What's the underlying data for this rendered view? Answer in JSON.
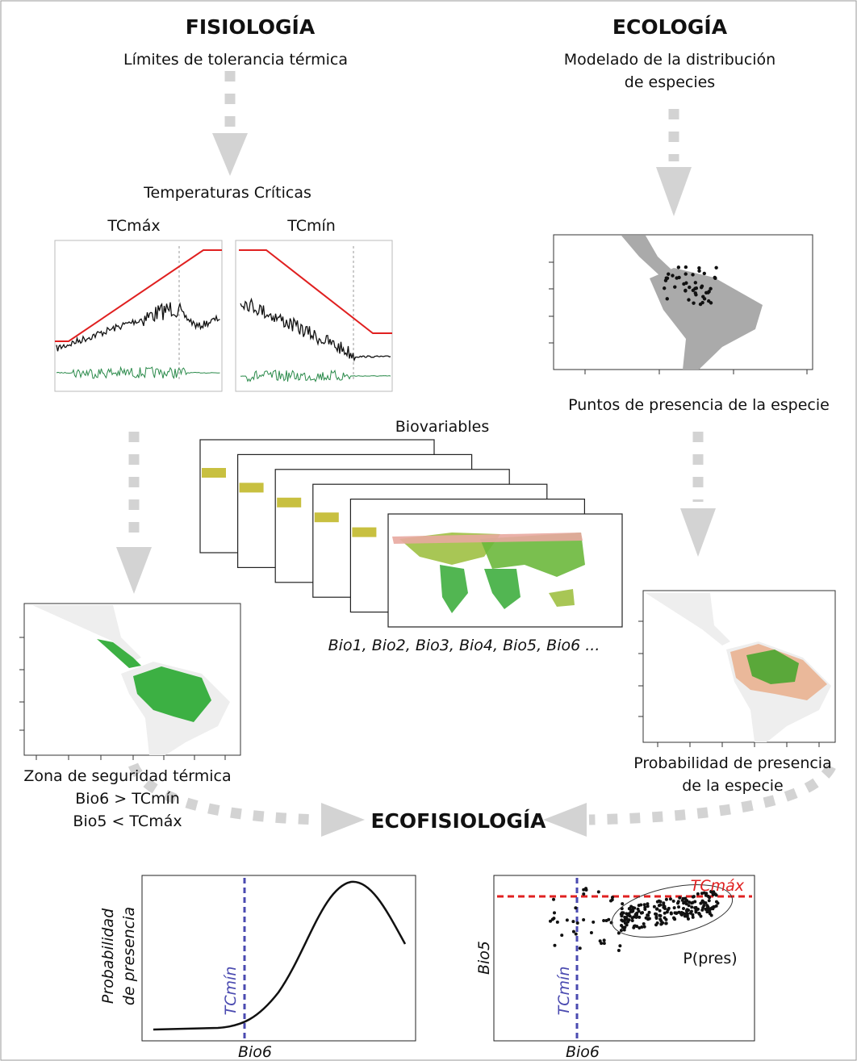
{
  "physiology": {
    "title": "FISIOLOGÍA",
    "subtitle": "Límites de tolerancia térmica",
    "critical_temps": "Temperaturas Críticas",
    "tcmax": "TCmáx",
    "tcmin": "TCmín"
  },
  "ecology": {
    "title": "ECOLOGÍA",
    "subtitle": [
      "Modelado de la distribución",
      "de especies"
    ],
    "presence_points": "Puntos de presencia de la especie"
  },
  "biovariables": {
    "title": "Biovariables",
    "list": "Bio1, Bio2, Bio3, Bio4, Bio5, Bio6 ..."
  },
  "safety_zone": {
    "lines": [
      "Zona de seguridad térmica",
      "Bio6 > TCmín",
      "Bio5 < TCmáx"
    ]
  },
  "probability": {
    "lines": [
      "Probabilidad de presencia",
      "de la especie"
    ]
  },
  "ecophysiology": {
    "title": "ECOFISIOLOGÍA",
    "left_plot": {
      "y_label": [
        "Probabilidad",
        "de presencia"
      ],
      "line_label": "TCmín",
      "x_label": "Bio6"
    },
    "right_plot": {
      "hline_label": "TCmáx",
      "ellipse_label": "P(pres)",
      "y_label": "Bio5",
      "vline_label": "TCmín",
      "x_label": "Bio6"
    }
  }
}
